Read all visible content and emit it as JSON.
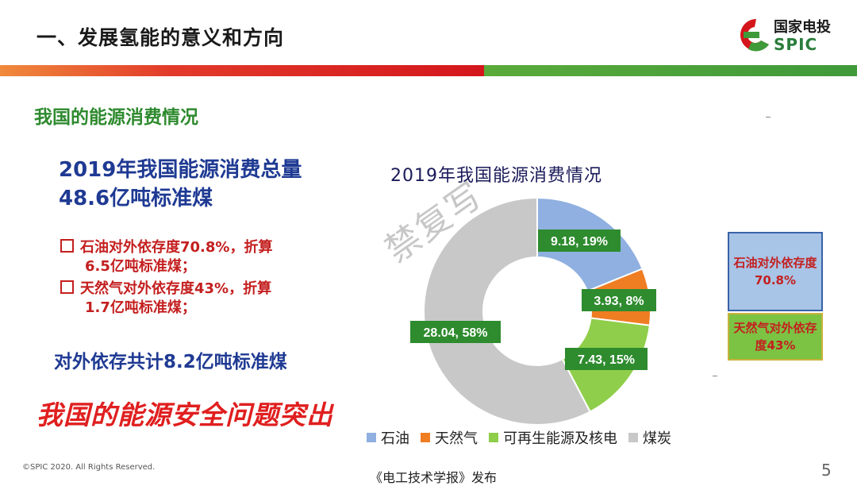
{
  "header": {
    "title": "一、发展氢能的意义和方向",
    "logo_cn": "国家电投",
    "logo_en": "SPIC"
  },
  "left": {
    "section_title": "我国的能源消费情况",
    "total": "2019年我国能源消费总量48.6亿吨标准煤",
    "bullet1_line1": "石油对外依存度70.8%，折算",
    "bullet1_line2": "6.5亿吨标准煤；",
    "bullet2_line1": "天然气对外依存度43%，折算",
    "bullet2_line2": "1.7亿吨标准煤；",
    "summary": "对外依存共计8.2亿吨标准煤",
    "risk": "我国的能源安全问题突出"
  },
  "side_boxes": {
    "oil": "石油对外依存度70.8%",
    "gas": "天然气对外依存度43%"
  },
  "watermark": "禁复写",
  "footer": {
    "copyright": "©SPIC 2020. All Rights Reserved.",
    "publisher": "《电工技术学报》发布",
    "page": "5"
  },
  "colors": {
    "oil": "#8fb0e0",
    "gas": "#ef7d22",
    "renewable": "#8fce4a",
    "coal": "#c8c8c8",
    "label_bg": "#2e8b2e"
  },
  "chart_data": {
    "type": "pie",
    "title": "2019年我国能源消费情况",
    "donut": true,
    "legend_position": "bottom",
    "categories": [
      "石油",
      "天然气",
      "可再生能源及核电",
      "煤炭"
    ],
    "values": [
      9.18,
      3.93,
      7.43,
      28.04
    ],
    "percent": [
      19,
      8,
      15,
      58
    ],
    "labels": [
      "9.18, 19%",
      "3.93, 8%",
      "7.43, 15%",
      "28.04, 58%"
    ]
  }
}
